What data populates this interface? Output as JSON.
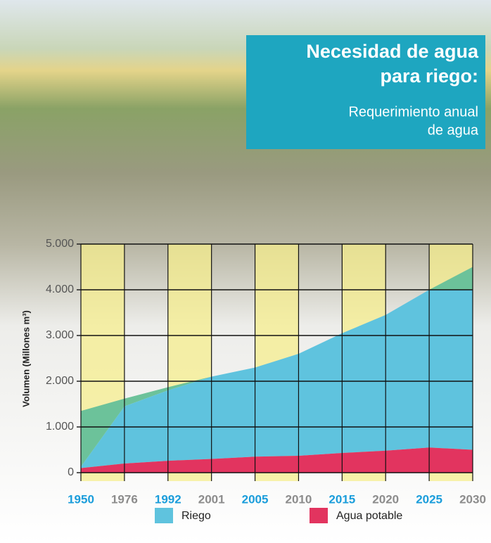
{
  "chart_data": {
    "type": "area",
    "title": [
      "Necesidad de agua",
      "para riego:"
    ],
    "subtitle": [
      "Requerimiento anual",
      "de agua"
    ],
    "y_label": "Volumen (Millones m³)",
    "categories": [
      "1950",
      "1976",
      "1992",
      "2001",
      "2005",
      "2010",
      "2015",
      "2020",
      "2025",
      "2030"
    ],
    "category_colors": [
      "#1a9ddb",
      "#8c8c8c"
    ],
    "series": [
      {
        "name": "Agua potable",
        "color": "#e2345f",
        "values": [
          100,
          200,
          260,
          300,
          350,
          370,
          430,
          480,
          550,
          500
        ]
      },
      {
        "name": "Riego",
        "color": "#5fc3de",
        "values": [
          30,
          1250,
          1540,
          1800,
          1950,
          2230,
          2620,
          2970,
          3450,
          3500
        ]
      },
      {
        "color": "#6cc29a",
        "values": [
          1220,
          170,
          70,
          0,
          0,
          0,
          0,
          0,
          0,
          500
        ]
      }
    ],
    "ylim": [
      0,
      5000
    ],
    "yticks": [
      0,
      {
        "value": 1000,
        "label": "1.000"
      },
      {
        "value": 2000,
        "label": "2.000"
      },
      {
        "value": 3000,
        "label": "3.000"
      },
      {
        "value": 4000,
        "label": "4.000"
      },
      {
        "value": 5000,
        "label": "5.000"
      }
    ],
    "grid": true,
    "band_color": "#f6ee8e"
  }
}
